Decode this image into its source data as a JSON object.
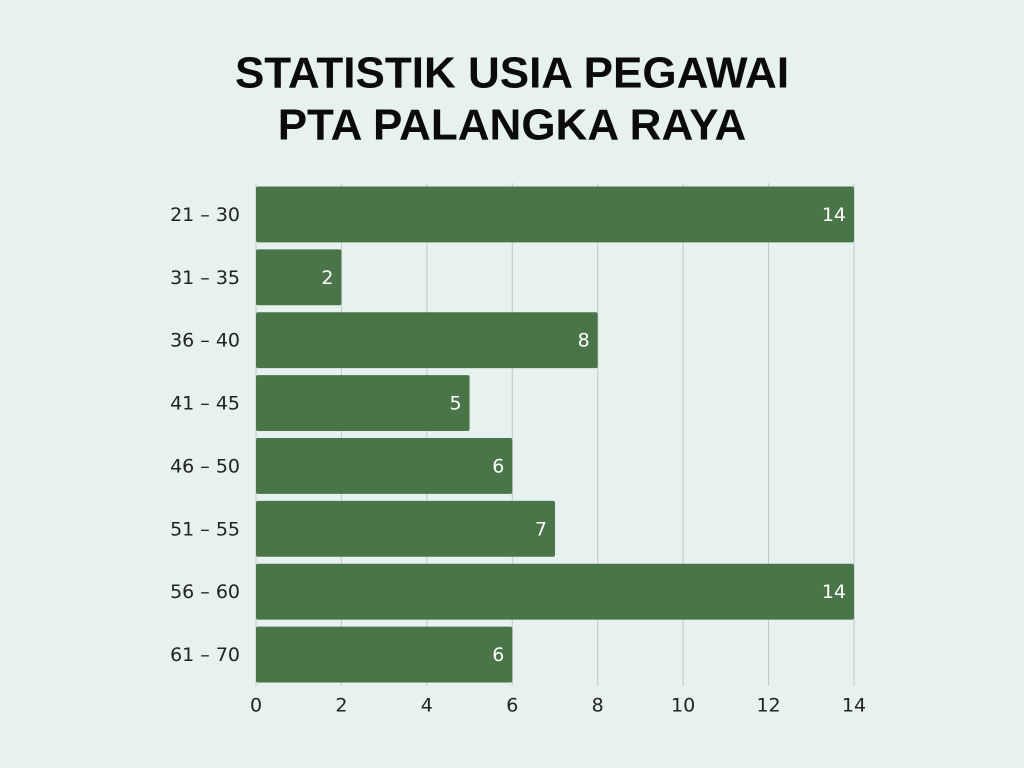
{
  "chart_data": {
    "type": "bar",
    "orientation": "horizontal",
    "title": [
      "STATISTIK USIA PEGAWAI",
      "PTA PALANGKA RAYA"
    ],
    "categories": [
      "21 – 30",
      "31 – 35",
      "36 – 40",
      "41 – 45",
      "46 – 50",
      "51 – 55",
      "56 – 60",
      "61 – 70"
    ],
    "values": [
      14,
      2,
      8,
      5,
      6,
      7,
      14,
      6
    ],
    "color": "#4a7548",
    "xlim": [
      0,
      14
    ],
    "xticks": [
      0,
      2,
      4,
      6,
      8,
      10,
      12,
      14
    ],
    "grid": true
  }
}
